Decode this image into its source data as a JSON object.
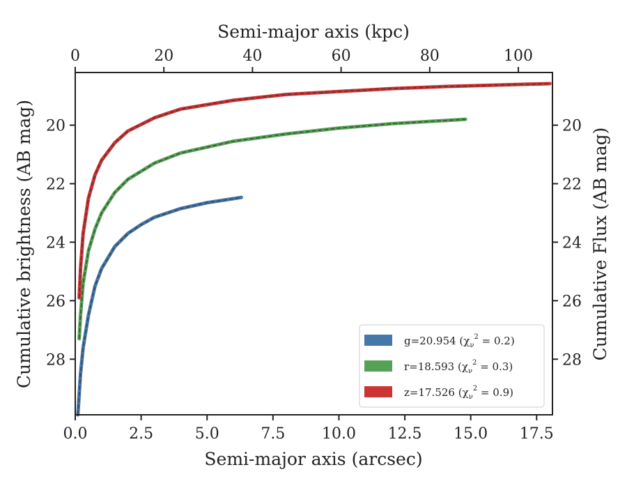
{
  "chart_data": {
    "type": "line",
    "xlabel_bottom": "Semi-major axis (arcsec)",
    "xlabel_top": "Semi-major axis (kpc)",
    "ylabel_left": "Cumulative brightness (AB mag)",
    "ylabel_right": "Cumulative Flux (AB mag)",
    "xlim": [
      0,
      18.1
    ],
    "xlim_top": [
      0,
      107.7
    ],
    "ylim": [
      29.9,
      18.2
    ],
    "y_inverted": true,
    "grid": false,
    "legend_position": "lower-right",
    "x_ticks_bottom": [
      "0.0",
      "2.5",
      "5.0",
      "7.5",
      "10.0",
      "12.5",
      "15.0",
      "17.5"
    ],
    "x_tick_values_bottom": [
      0,
      2.5,
      5,
      7.5,
      10,
      12.5,
      15,
      17.5
    ],
    "x_ticks_top": [
      "0",
      "20",
      "40",
      "60",
      "80",
      "100"
    ],
    "x_tick_values_top": [
      0,
      20,
      40,
      60,
      80,
      100
    ],
    "y_ticks": [
      "20",
      "22",
      "24",
      "26",
      "28"
    ],
    "y_tick_values": [
      20,
      22,
      24,
      26,
      28
    ],
    "series": [
      {
        "name": "g=20.954",
        "legend_label": "g=20.954 (χ²ᵥ = 0.2)",
        "legend_main": "g=20.954",
        "legend_chi": "0.2",
        "color": "#4477aa",
        "x": [
          0.1,
          0.2,
          0.3,
          0.5,
          0.75,
          1.0,
          1.5,
          2.0,
          2.5,
          3.0,
          4.0,
          5.0,
          6.3
        ],
        "y": [
          29.9,
          28.5,
          27.6,
          26.5,
          25.5,
          24.9,
          24.15,
          23.7,
          23.4,
          23.15,
          22.85,
          22.65,
          22.47
        ]
      },
      {
        "name": "r=18.593",
        "legend_label": "r=18.593 (χ²ᵥ = 0.3)",
        "legend_main": "r=18.593",
        "legend_chi": "0.3",
        "color": "#55a155",
        "x": [
          0.15,
          0.2,
          0.3,
          0.5,
          0.75,
          1.0,
          1.5,
          2.0,
          3.0,
          4.0,
          6.0,
          8.0,
          10.0,
          12.0,
          14.8
        ],
        "y": [
          27.3,
          26.5,
          25.4,
          24.3,
          23.55,
          23.0,
          22.3,
          21.85,
          21.3,
          20.95,
          20.55,
          20.3,
          20.1,
          19.95,
          19.8
        ]
      },
      {
        "name": "z=17.526",
        "legend_label": "z=17.526 (χ²ᵥ = 0.9)",
        "legend_main": "z=17.526",
        "legend_chi": "0.9",
        "color": "#cc3333",
        "x": [
          0.15,
          0.2,
          0.3,
          0.5,
          0.75,
          1.0,
          1.5,
          2.0,
          3.0,
          4.0,
          6.0,
          8.0,
          10.0,
          12.0,
          14.0,
          16.0,
          18.0
        ],
        "y": [
          25.9,
          24.9,
          23.7,
          22.5,
          21.7,
          21.2,
          20.6,
          20.2,
          19.75,
          19.45,
          19.15,
          18.95,
          18.85,
          18.75,
          18.68,
          18.63,
          18.58
        ]
      }
    ]
  }
}
